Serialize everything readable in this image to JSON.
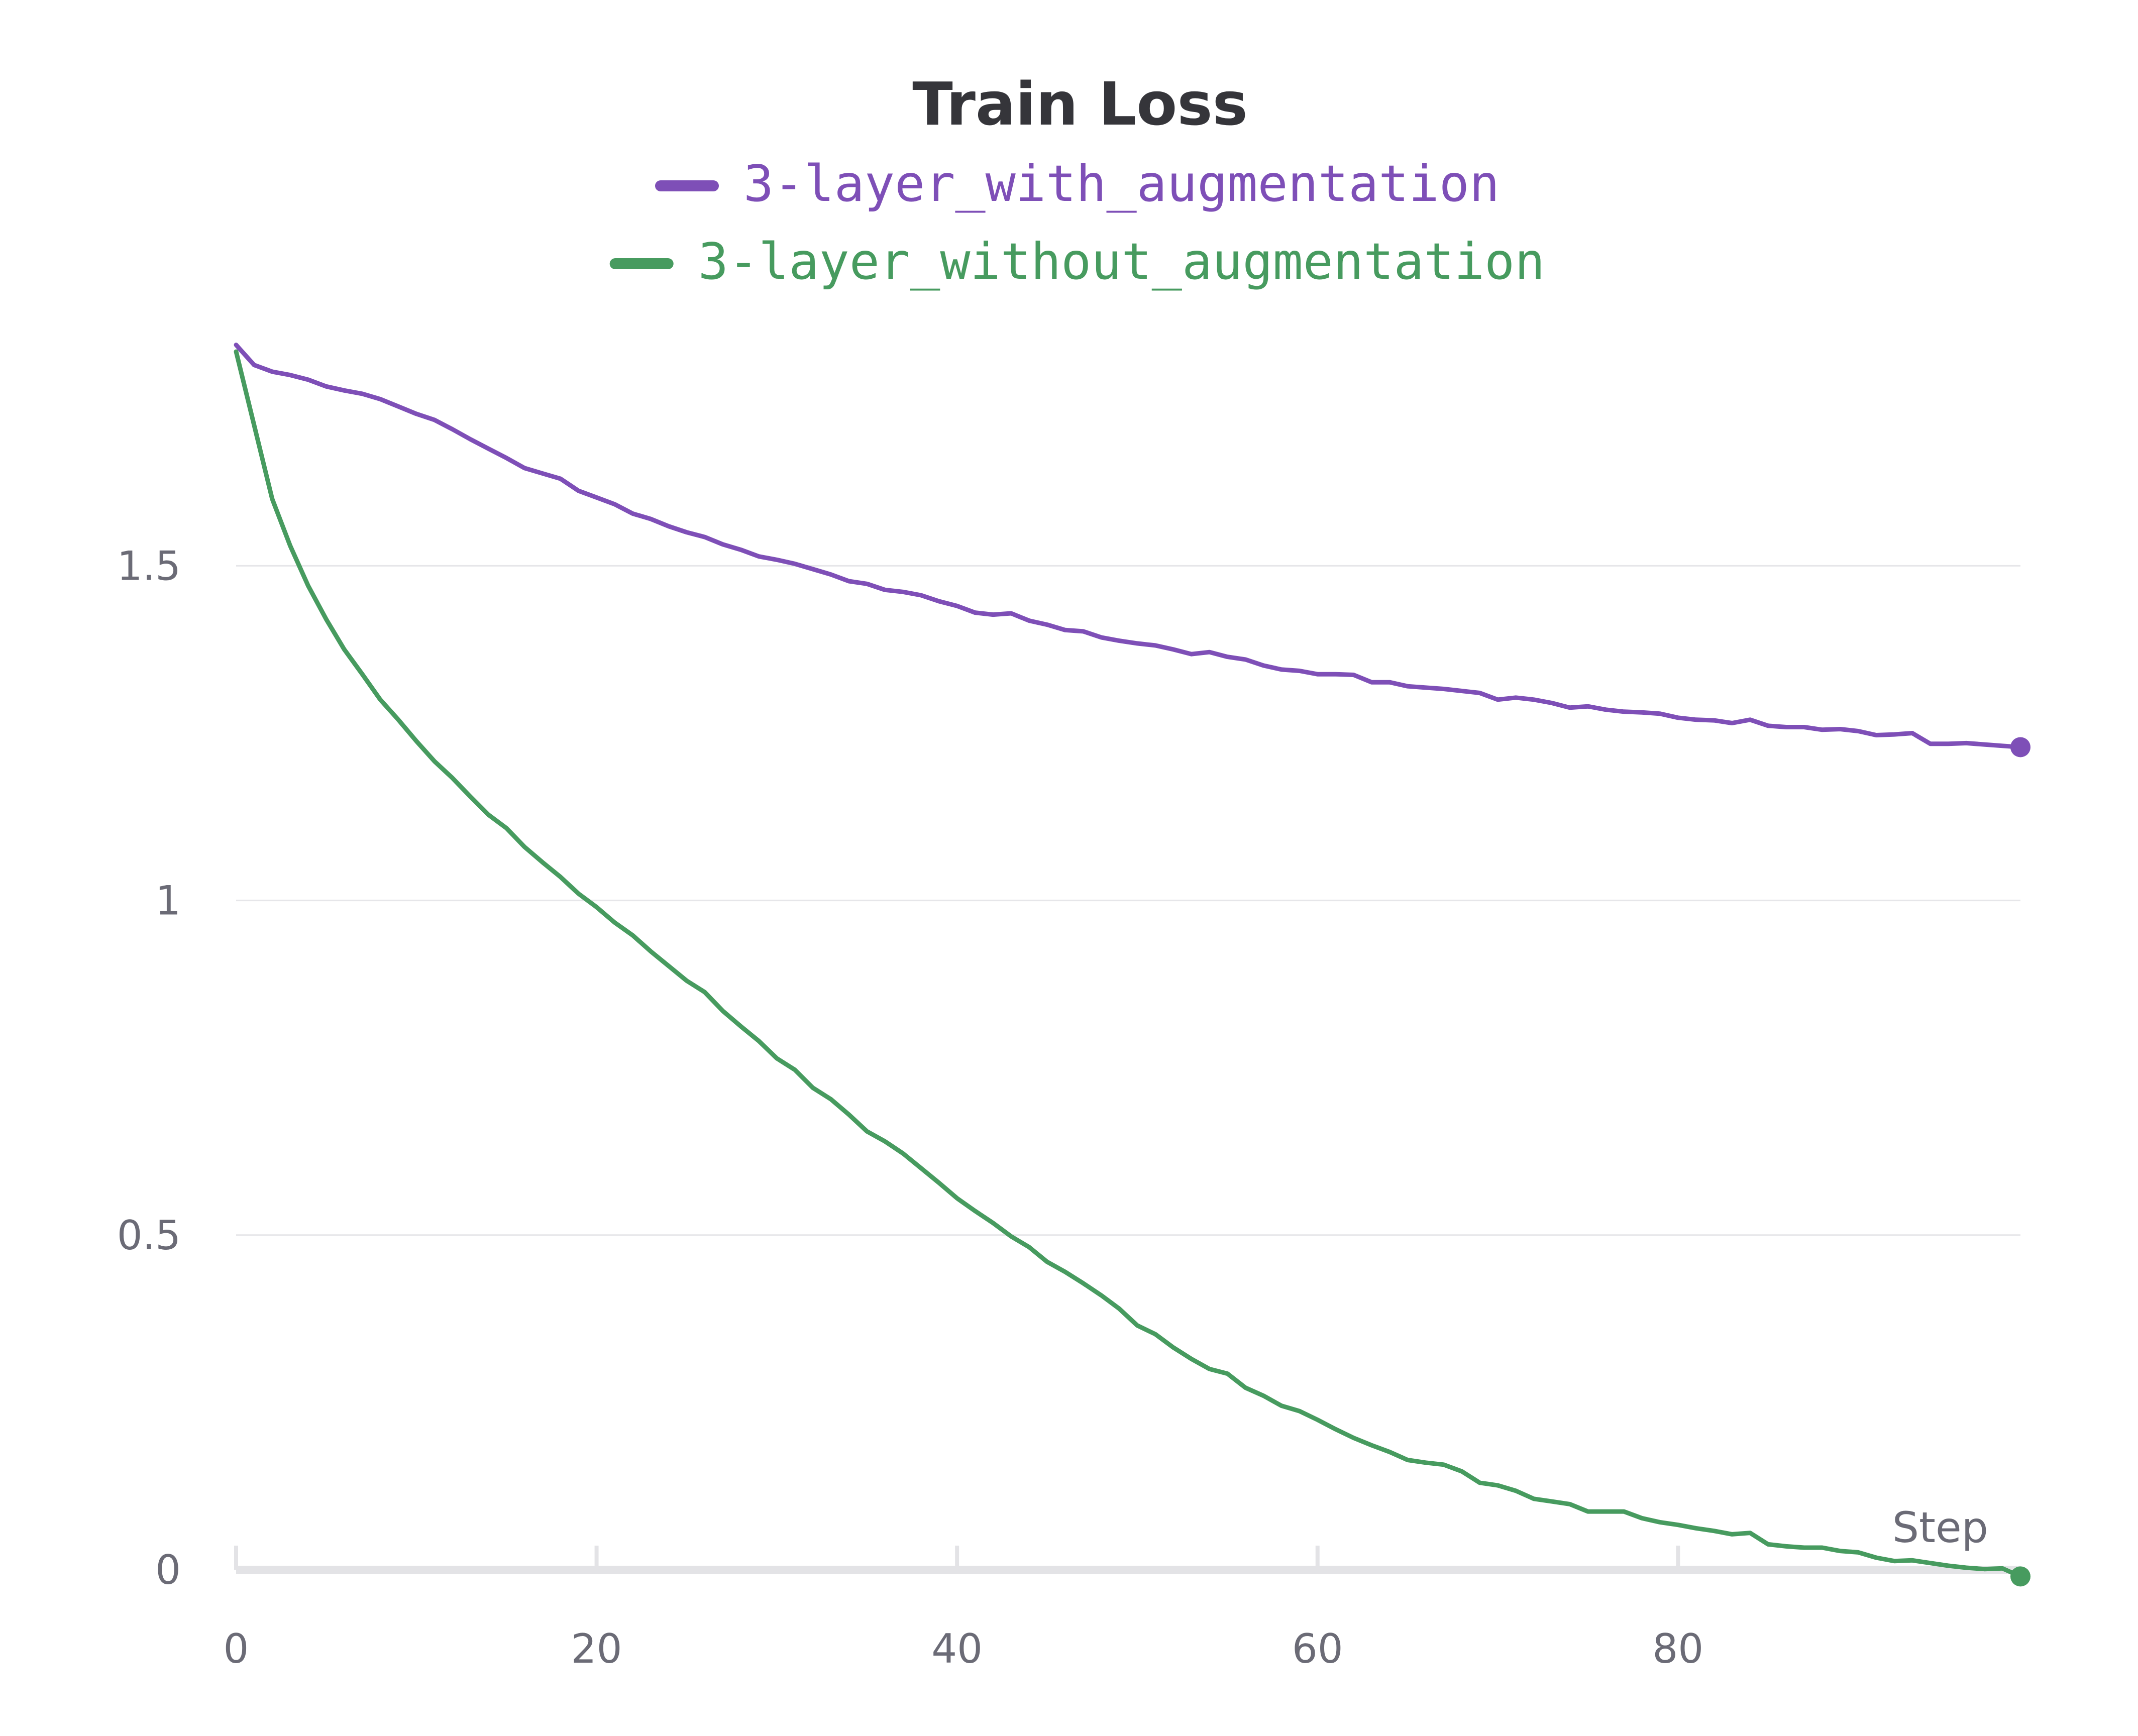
{
  "chart_data": {
    "type": "line",
    "title": "Train Loss",
    "xlabel": "Step",
    "ylabel": "",
    "xlim": [
      0,
      99
    ],
    "ylim": [
      0,
      1.85
    ],
    "x_ticks": [
      0,
      20,
      40,
      60,
      80
    ],
    "x_tick_labels": [
      "0",
      "20",
      "40",
      "60",
      "80"
    ],
    "y_ticks": [
      0,
      0.5,
      1,
      1.5
    ],
    "y_tick_labels": [
      "0",
      "0.5",
      "1",
      "1.5"
    ],
    "grid": true,
    "legend_position": "top-center",
    "series": [
      {
        "name": "3-layer_with_augmentation",
        "color": "#7e4fb7",
        "end_marker": true,
        "x": [
          0,
          1,
          2,
          3,
          4,
          5,
          6,
          7,
          8,
          9,
          10,
          11,
          12,
          13,
          14,
          15,
          16,
          17,
          18,
          19,
          20,
          21,
          22,
          23,
          24,
          25,
          26,
          27,
          28,
          29,
          30,
          31,
          32,
          33,
          34,
          35,
          36,
          37,
          38,
          39,
          40,
          41,
          42,
          43,
          44,
          45,
          46,
          47,
          48,
          49,
          50,
          51,
          52,
          53,
          54,
          55,
          56,
          57,
          58,
          59,
          60,
          61,
          62,
          63,
          64,
          65,
          66,
          67,
          68,
          69,
          70,
          71,
          72,
          73,
          74,
          75,
          76,
          77,
          78,
          79,
          80,
          81,
          82,
          83,
          84,
          85,
          86,
          87,
          88,
          89,
          90,
          91,
          92,
          93,
          94,
          95,
          96,
          97,
          98,
          99
        ],
        "y": [
          1.83,
          1.8,
          1.79,
          1.785,
          1.778,
          1.768,
          1.762,
          1.757,
          1.749,
          1.738,
          1.727,
          1.718,
          1.704,
          1.689,
          1.675,
          1.661,
          1.646,
          1.638,
          1.63,
          1.612,
          1.602,
          1.592,
          1.578,
          1.57,
          1.559,
          1.55,
          1.543,
          1.532,
          1.524,
          1.514,
          1.509,
          1.503,
          1.495,
          1.487,
          1.477,
          1.473,
          1.464,
          1.461,
          1.456,
          1.447,
          1.44,
          1.43,
          1.427,
          1.429,
          1.418,
          1.412,
          1.404,
          1.402,
          1.393,
          1.388,
          1.384,
          1.381,
          1.375,
          1.368,
          1.371,
          1.364,
          1.36,
          1.351,
          1.345,
          1.343,
          1.338,
          1.338,
          1.337,
          1.326,
          1.326,
          1.32,
          1.318,
          1.316,
          1.313,
          1.31,
          1.3,
          1.303,
          1.3,
          1.295,
          1.288,
          1.29,
          1.285,
          1.282,
          1.281,
          1.279,
          1.273,
          1.27,
          1.269,
          1.265,
          1.27,
          1.261,
          1.259,
          1.259,
          1.255,
          1.256,
          1.253,
          1.247,
          1.248,
          1.25,
          1.234,
          1.234,
          1.235,
          1.233,
          1.231,
          1.229
        ]
      },
      {
        "name": "3-layer_without_augmentation",
        "color": "#479b5f",
        "end_marker": true,
        "x": [
          0,
          1,
          2,
          3,
          4,
          5,
          6,
          7,
          8,
          9,
          10,
          11,
          12,
          13,
          14,
          15,
          16,
          17,
          18,
          19,
          20,
          21,
          22,
          23,
          24,
          25,
          26,
          27,
          28,
          29,
          30,
          31,
          32,
          33,
          34,
          35,
          36,
          37,
          38,
          39,
          40,
          41,
          42,
          43,
          44,
          45,
          46,
          47,
          48,
          49,
          50,
          51,
          52,
          53,
          54,
          55,
          56,
          57,
          58,
          59,
          60,
          61,
          62,
          63,
          64,
          65,
          66,
          67,
          68,
          69,
          70,
          71,
          72,
          73,
          74,
          75,
          76,
          77,
          78,
          79,
          80,
          81,
          82,
          83,
          84,
          85,
          86,
          87,
          88,
          89,
          90,
          91,
          92,
          93,
          94,
          95,
          96,
          97,
          98,
          99
        ],
        "y": [
          1.82,
          1.71,
          1.6,
          1.53,
          1.47,
          1.42,
          1.375,
          1.338,
          1.3,
          1.27,
          1.238,
          1.208,
          1.183,
          1.155,
          1.128,
          1.108,
          1.08,
          1.057,
          1.035,
          1.01,
          0.99,
          0.967,
          0.948,
          0.924,
          0.902,
          0.88,
          0.863,
          0.835,
          0.812,
          0.79,
          0.764,
          0.747,
          0.72,
          0.703,
          0.68,
          0.655,
          0.64,
          0.622,
          0.6,
          0.578,
          0.555,
          0.536,
          0.518,
          0.498,
          0.482,
          0.46,
          0.445,
          0.428,
          0.41,
          0.39,
          0.365,
          0.352,
          0.332,
          0.315,
          0.3,
          0.293,
          0.272,
          0.26,
          0.245,
          0.237,
          0.224,
          0.21,
          0.197,
          0.186,
          0.176,
          0.164,
          0.16,
          0.157,
          0.147,
          0.13,
          0.126,
          0.118,
          0.106,
          0.102,
          0.098,
          0.087,
          0.087,
          0.087,
          0.077,
          0.071,
          0.067,
          0.062,
          0.058,
          0.053,
          0.055,
          0.038,
          0.035,
          0.033,
          0.033,
          0.028,
          0.026,
          0.018,
          0.013,
          0.014,
          0.01,
          0.006,
          0.003,
          0.001,
          0.002,
          -0.01
        ]
      }
    ]
  }
}
